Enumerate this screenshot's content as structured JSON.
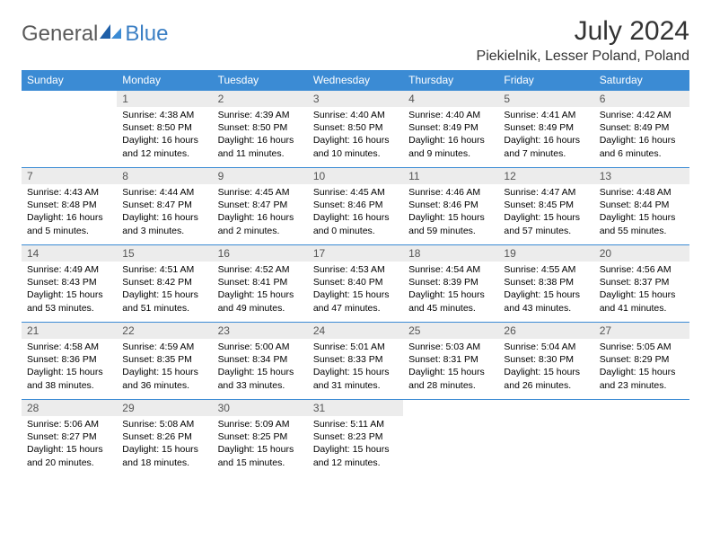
{
  "brand": {
    "word1": "General",
    "word2": "Blue"
  },
  "title": "July 2024",
  "location": "Piekielnik, Lesser Poland, Poland",
  "colors": {
    "header_bg": "#3b8bd4",
    "header_text": "#ffffff",
    "daynum_bg": "#ececec",
    "daynum_text": "#555555",
    "border": "#3b8bd4",
    "title_text": "#333333",
    "brand_gray": "#5a5a5a",
    "brand_blue": "#3b7fc4"
  },
  "weekdays": [
    "Sunday",
    "Monday",
    "Tuesday",
    "Wednesday",
    "Thursday",
    "Friday",
    "Saturday"
  ],
  "startOffset": 1,
  "days": [
    {
      "n": 1,
      "sr": "4:38 AM",
      "ss": "8:50 PM",
      "dl": "16 hours and 12 minutes."
    },
    {
      "n": 2,
      "sr": "4:39 AM",
      "ss": "8:50 PM",
      "dl": "16 hours and 11 minutes."
    },
    {
      "n": 3,
      "sr": "4:40 AM",
      "ss": "8:50 PM",
      "dl": "16 hours and 10 minutes."
    },
    {
      "n": 4,
      "sr": "4:40 AM",
      "ss": "8:49 PM",
      "dl": "16 hours and 9 minutes."
    },
    {
      "n": 5,
      "sr": "4:41 AM",
      "ss": "8:49 PM",
      "dl": "16 hours and 7 minutes."
    },
    {
      "n": 6,
      "sr": "4:42 AM",
      "ss": "8:49 PM",
      "dl": "16 hours and 6 minutes."
    },
    {
      "n": 7,
      "sr": "4:43 AM",
      "ss": "8:48 PM",
      "dl": "16 hours and 5 minutes."
    },
    {
      "n": 8,
      "sr": "4:44 AM",
      "ss": "8:47 PM",
      "dl": "16 hours and 3 minutes."
    },
    {
      "n": 9,
      "sr": "4:45 AM",
      "ss": "8:47 PM",
      "dl": "16 hours and 2 minutes."
    },
    {
      "n": 10,
      "sr": "4:45 AM",
      "ss": "8:46 PM",
      "dl": "16 hours and 0 minutes."
    },
    {
      "n": 11,
      "sr": "4:46 AM",
      "ss": "8:46 PM",
      "dl": "15 hours and 59 minutes."
    },
    {
      "n": 12,
      "sr": "4:47 AM",
      "ss": "8:45 PM",
      "dl": "15 hours and 57 minutes."
    },
    {
      "n": 13,
      "sr": "4:48 AM",
      "ss": "8:44 PM",
      "dl": "15 hours and 55 minutes."
    },
    {
      "n": 14,
      "sr": "4:49 AM",
      "ss": "8:43 PM",
      "dl": "15 hours and 53 minutes."
    },
    {
      "n": 15,
      "sr": "4:51 AM",
      "ss": "8:42 PM",
      "dl": "15 hours and 51 minutes."
    },
    {
      "n": 16,
      "sr": "4:52 AM",
      "ss": "8:41 PM",
      "dl": "15 hours and 49 minutes."
    },
    {
      "n": 17,
      "sr": "4:53 AM",
      "ss": "8:40 PM",
      "dl": "15 hours and 47 minutes."
    },
    {
      "n": 18,
      "sr": "4:54 AM",
      "ss": "8:39 PM",
      "dl": "15 hours and 45 minutes."
    },
    {
      "n": 19,
      "sr": "4:55 AM",
      "ss": "8:38 PM",
      "dl": "15 hours and 43 minutes."
    },
    {
      "n": 20,
      "sr": "4:56 AM",
      "ss": "8:37 PM",
      "dl": "15 hours and 41 minutes."
    },
    {
      "n": 21,
      "sr": "4:58 AM",
      "ss": "8:36 PM",
      "dl": "15 hours and 38 minutes."
    },
    {
      "n": 22,
      "sr": "4:59 AM",
      "ss": "8:35 PM",
      "dl": "15 hours and 36 minutes."
    },
    {
      "n": 23,
      "sr": "5:00 AM",
      "ss": "8:34 PM",
      "dl": "15 hours and 33 minutes."
    },
    {
      "n": 24,
      "sr": "5:01 AM",
      "ss": "8:33 PM",
      "dl": "15 hours and 31 minutes."
    },
    {
      "n": 25,
      "sr": "5:03 AM",
      "ss": "8:31 PM",
      "dl": "15 hours and 28 minutes."
    },
    {
      "n": 26,
      "sr": "5:04 AM",
      "ss": "8:30 PM",
      "dl": "15 hours and 26 minutes."
    },
    {
      "n": 27,
      "sr": "5:05 AM",
      "ss": "8:29 PM",
      "dl": "15 hours and 23 minutes."
    },
    {
      "n": 28,
      "sr": "5:06 AM",
      "ss": "8:27 PM",
      "dl": "15 hours and 20 minutes."
    },
    {
      "n": 29,
      "sr": "5:08 AM",
      "ss": "8:26 PM",
      "dl": "15 hours and 18 minutes."
    },
    {
      "n": 30,
      "sr": "5:09 AM",
      "ss": "8:25 PM",
      "dl": "15 hours and 15 minutes."
    },
    {
      "n": 31,
      "sr": "5:11 AM",
      "ss": "8:23 PM",
      "dl": "15 hours and 12 minutes."
    }
  ],
  "labels": {
    "sunrise": "Sunrise:",
    "sunset": "Sunset:",
    "daylight": "Daylight:"
  }
}
